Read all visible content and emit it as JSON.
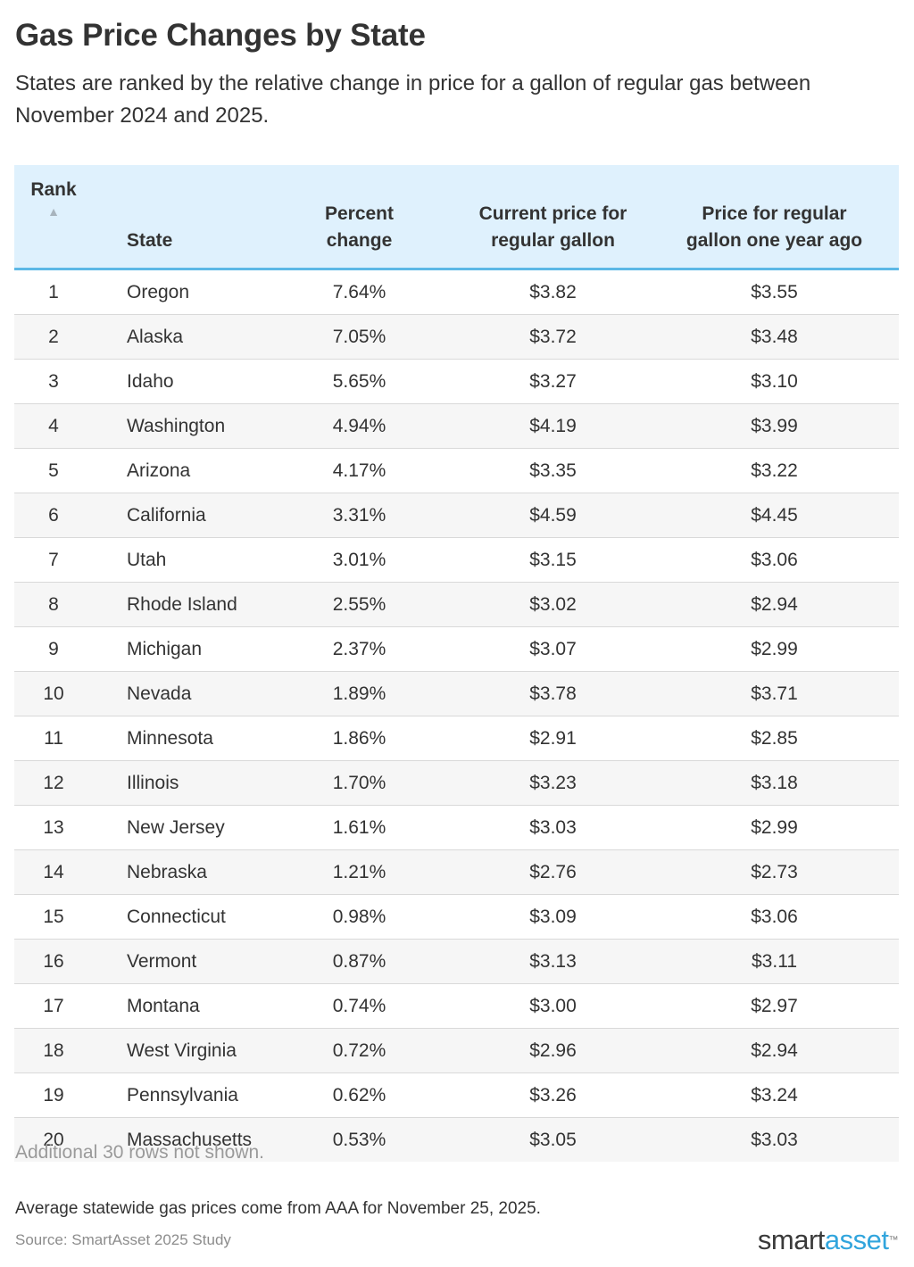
{
  "title": "Gas Price Changes by State",
  "subtitle": "States are ranked by the relative change in price for a gallon of regular gas between November 2024 and 2025.",
  "headers": {
    "rank": "Rank",
    "rank_sort_icon": "▲",
    "state": "State",
    "pct_line1": "Percent",
    "pct_line2": "change",
    "current_line1": "Current price for",
    "current_line2": "regular gallon",
    "prev_line1": "Price for regular",
    "prev_line2": "gallon one year ago"
  },
  "chart_data": {
    "type": "table",
    "sorted_by": "Rank",
    "sort_direction": "ascending",
    "columns": [
      "Rank",
      "State",
      "Percent change",
      "Current price for regular gallon",
      "Price for regular gallon one year ago"
    ],
    "rows": [
      [
        "1",
        "Oregon",
        "7.64%",
        "$3.82",
        "$3.55"
      ],
      [
        "2",
        "Alaska",
        "7.05%",
        "$3.72",
        "$3.48"
      ],
      [
        "3",
        "Idaho",
        "5.65%",
        "$3.27",
        "$3.10"
      ],
      [
        "4",
        "Washington",
        "4.94%",
        "$4.19",
        "$3.99"
      ],
      [
        "5",
        "Arizona",
        "4.17%",
        "$3.35",
        "$3.22"
      ],
      [
        "6",
        "California",
        "3.31%",
        "$4.59",
        "$4.45"
      ],
      [
        "7",
        "Utah",
        "3.01%",
        "$3.15",
        "$3.06"
      ],
      [
        "8",
        "Rhode Island",
        "2.55%",
        "$3.02",
        "$2.94"
      ],
      [
        "9",
        "Michigan",
        "2.37%",
        "$3.07",
        "$2.99"
      ],
      [
        "10",
        "Nevada",
        "1.89%",
        "$3.78",
        "$3.71"
      ],
      [
        "11",
        "Minnesota",
        "1.86%",
        "$2.91",
        "$2.85"
      ],
      [
        "12",
        "Illinois",
        "1.70%",
        "$3.23",
        "$3.18"
      ],
      [
        "13",
        "New Jersey",
        "1.61%",
        "$3.03",
        "$2.99"
      ],
      [
        "14",
        "Nebraska",
        "1.21%",
        "$2.76",
        "$2.73"
      ],
      [
        "15",
        "Connecticut",
        "0.98%",
        "$3.09",
        "$3.06"
      ],
      [
        "16",
        "Vermont",
        "0.87%",
        "$3.13",
        "$3.11"
      ],
      [
        "17",
        "Montana",
        "0.74%",
        "$3.00",
        "$2.97"
      ],
      [
        "18",
        "West Virginia",
        "0.72%",
        "$2.96",
        "$2.94"
      ],
      [
        "19",
        "Pennsylvania",
        "0.62%",
        "$3.26",
        "$3.24"
      ],
      [
        "20",
        "Massachusetts",
        "0.53%",
        "$3.05",
        "$3.03"
      ]
    ]
  },
  "more_rows_text": "Additional 30 rows not shown.",
  "note": "Average statewide gas prices come from AAA for November 25, 2025.",
  "source": "Source: SmartAsset 2025 Study",
  "logo": {
    "part1": "smart",
    "part2": "asset",
    "mark": "™"
  },
  "colors": {
    "header_bg": "#dff1fd",
    "header_border": "#5cb8e6",
    "zebra_row": "#f6f6f6",
    "logo_accent": "#31a5dd"
  }
}
